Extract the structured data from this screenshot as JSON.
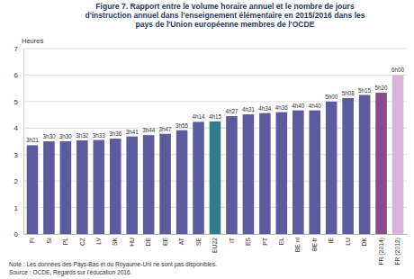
{
  "chart_data": {
    "type": "bar",
    "title": "Figure 7.  Rapport entre le volume horaire annuel et le nombre de jours d'instruction annuel dans l'enseignement élémentaire en 2015/2016 dans les pays de l'Union européenne membres de l'OCDE",
    "y_label": "Heures",
    "categories": [
      "FI",
      "SI",
      "PL",
      "CZ",
      "LV",
      "SK",
      "HU",
      "DE",
      "EE",
      "AT",
      "SE",
      "EU22",
      "IT",
      "ES",
      "PT",
      "EL",
      "BE nl",
      "BE fr",
      "IE",
      "LU",
      "DK",
      "FR (2014)",
      "FR (2012)"
    ],
    "values": [
      3.35,
      3.5,
      3.5,
      3.533,
      3.55,
      3.6,
      3.683,
      3.733,
      3.783,
      3.917,
      4.233,
      4.25,
      4.45,
      4.517,
      4.567,
      4.6,
      4.667,
      4.667,
      5.0,
      5.133,
      5.25,
      5.333,
      6.0
    ],
    "value_labels": [
      "3h21",
      "3h30",
      "3h30",
      "3h32",
      "3h33",
      "3h36",
      "3h41",
      "3h44",
      "3h47",
      "3h55",
      "4h14",
      "4h15",
      "4h27",
      "4h31",
      "4h34",
      "4h36",
      "4h40",
      "4h40",
      "5h00",
      "5h08",
      "5h15",
      "5h20",
      "6h00"
    ],
    "colors": [
      "#5d5b9f",
      "#5d5b9f",
      "#5d5b9f",
      "#5d5b9f",
      "#5d5b9f",
      "#5d5b9f",
      "#5d5b9f",
      "#5d5b9f",
      "#5d5b9f",
      "#5d5b9f",
      "#5d5b9f",
      "#2e7d89",
      "#5d5b9f",
      "#5d5b9f",
      "#5d5b9f",
      "#5d5b9f",
      "#5d5b9f",
      "#5d5b9f",
      "#5d5b9f",
      "#5d5b9f",
      "#5d5b9f",
      "#8b4a8f",
      "#d8b4d9"
    ],
    "ylim": [
      0,
      7
    ],
    "yticks": [
      0,
      1,
      2,
      3,
      4,
      5,
      6,
      7
    ],
    "grid": true,
    "data_labels": true,
    "notes": [
      "Note : Les données des Pays-Bas et du Royaume-Uni ne sont pas disponibles.",
      "Source : OCDE, Regards sur l'éducation 2016."
    ]
  }
}
